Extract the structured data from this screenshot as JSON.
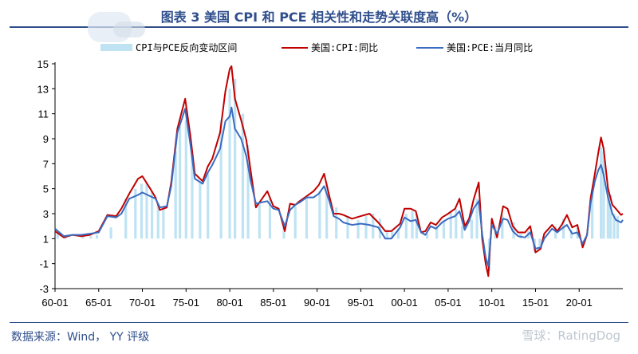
{
  "header": {
    "title": "图表 3 美国 CPI 和 PCE 相关性和走势关联度高（%）"
  },
  "footer": {
    "source": "数据来源：Wind， YY 评级",
    "watermark": "雪球：RatingDog"
  },
  "colors": {
    "band": "#bfe3f3",
    "cpi": "#c00000",
    "pce": "#3a6cc0",
    "axis": "#000000",
    "title": "#2f4e8c"
  },
  "chart_data": {
    "type": "line",
    "title": "图表 3 美国 CPI 和 PCE 相关性和走势关联度高（%）",
    "xlabel": "",
    "ylabel": "",
    "x_tick_labels": [
      "60-01",
      "65-01",
      "70-01",
      "75-01",
      "80-01",
      "85-01",
      "90-01",
      "95-01",
      "00-01",
      "05-01",
      "10-01",
      "15-01",
      "20-01"
    ],
    "x_domain": [
      1960.0,
      2025.0
    ],
    "y_tick_labels": [
      "-3",
      "-1",
      "1",
      "3",
      "5",
      "7",
      "9",
      "11",
      "13",
      "15"
    ],
    "ylim": [
      -3,
      15
    ],
    "grid": false,
    "legend_position": "top",
    "legend": [
      "CPI与PCE反向变动区间",
      "美国:CPI:同比",
      "美国:PCE:当月同比"
    ],
    "series": [
      {
        "name": "美国:CPI:同比",
        "x": [
          1960.0,
          1961.0,
          1962.0,
          1963.0,
          1964.0,
          1965.0,
          1966.0,
          1967.0,
          1967.6,
          1968.5,
          1969.5,
          1970.0,
          1970.9,
          1971.5,
          1972.0,
          1972.8,
          1973.3,
          1974.0,
          1974.9,
          1975.5,
          1976.0,
          1976.9,
          1977.5,
          1978.0,
          1978.9,
          1979.5,
          1980.0,
          1980.2,
          1980.6,
          1981.3,
          1981.9,
          1982.4,
          1983.0,
          1983.6,
          1984.3,
          1985.0,
          1985.6,
          1986.3,
          1986.9,
          1987.5,
          1988.0,
          1988.8,
          1989.6,
          1990.2,
          1990.8,
          1991.4,
          1991.9,
          1992.5,
          1993.0,
          1994.0,
          1995.0,
          1996.0,
          1997.0,
          1997.8,
          1998.5,
          1999.5,
          2000.0,
          2000.7,
          2001.3,
          2001.9,
          2002.4,
          2003.0,
          2003.6,
          2004.3,
          2005.0,
          2005.8,
          2006.3,
          2006.9,
          2007.4,
          2007.9,
          2008.5,
          2008.9,
          2009.3,
          2009.6,
          2010.0,
          2010.6,
          2011.3,
          2011.8,
          2012.4,
          2013.0,
          2013.8,
          2014.4,
          2015.0,
          2015.6,
          2016.0,
          2016.9,
          2017.5,
          2018.0,
          2018.6,
          2019.2,
          2019.8,
          2020.4,
          2020.9,
          2021.3,
          2021.8,
          2022.2,
          2022.5,
          2022.8,
          2023.3,
          2023.8,
          2024.2,
          2024.8,
          2025.0
        ],
        "values": [
          1.6,
          1.1,
          1.3,
          1.2,
          1.3,
          1.6,
          2.9,
          2.8,
          3.4,
          4.6,
          5.8,
          6.0,
          5.0,
          4.3,
          3.3,
          3.5,
          5.5,
          9.8,
          12.2,
          9.2,
          6.2,
          5.6,
          6.8,
          7.4,
          9.5,
          12.8,
          14.6,
          14.8,
          12.2,
          10.5,
          8.9,
          6.4,
          3.5,
          4.1,
          4.8,
          3.6,
          3.4,
          1.6,
          3.8,
          3.7,
          4.0,
          4.4,
          4.8,
          5.3,
          6.2,
          4.4,
          3.0,
          3.0,
          2.9,
          2.6,
          2.8,
          3.0,
          2.3,
          1.6,
          1.6,
          2.2,
          3.4,
          3.4,
          3.2,
          1.5,
          1.6,
          2.3,
          2.1,
          2.7,
          3.0,
          3.4,
          4.2,
          2.0,
          2.6,
          4.1,
          5.5,
          1.0,
          -1.0,
          -2.0,
          2.6,
          1.1,
          3.6,
          3.4,
          2.0,
          1.5,
          1.5,
          2.0,
          -0.1,
          0.2,
          1.4,
          2.1,
          1.6,
          2.1,
          2.9,
          1.9,
          2.1,
          0.3,
          1.3,
          4.2,
          6.2,
          7.9,
          9.1,
          8.2,
          5.0,
          3.7,
          3.4,
          2.9,
          3.0
        ]
      },
      {
        "name": "美国:PCE:当月同比",
        "x": [
          1960.0,
          1961.0,
          1962.0,
          1963.0,
          1964.0,
          1965.0,
          1966.0,
          1967.0,
          1967.6,
          1968.5,
          1969.5,
          1970.0,
          1970.9,
          1971.5,
          1972.0,
          1972.8,
          1973.3,
          1974.0,
          1974.9,
          1975.5,
          1976.0,
          1976.9,
          1977.5,
          1978.0,
          1978.9,
          1979.5,
          1980.0,
          1980.2,
          1980.6,
          1981.3,
          1981.9,
          1982.4,
          1983.0,
          1983.6,
          1984.3,
          1985.0,
          1985.6,
          1986.3,
          1986.9,
          1987.5,
          1988.0,
          1988.8,
          1989.6,
          1990.2,
          1990.8,
          1991.4,
          1991.9,
          1992.5,
          1993.0,
          1994.0,
          1995.0,
          1996.0,
          1997.0,
          1997.8,
          1998.5,
          1999.5,
          2000.0,
          2000.7,
          2001.3,
          2001.9,
          2002.4,
          2003.0,
          2003.6,
          2004.3,
          2005.0,
          2005.8,
          2006.3,
          2006.9,
          2007.4,
          2007.9,
          2008.5,
          2008.9,
          2009.3,
          2009.6,
          2010.0,
          2010.6,
          2011.3,
          2011.8,
          2012.4,
          2013.0,
          2013.8,
          2014.4,
          2015.0,
          2015.6,
          2016.0,
          2016.9,
          2017.5,
          2018.0,
          2018.6,
          2019.2,
          2019.8,
          2020.4,
          2020.9,
          2021.3,
          2021.8,
          2022.2,
          2022.5,
          2022.8,
          2023.3,
          2023.8,
          2024.2,
          2024.8,
          2025.0
        ],
        "values": [
          1.8,
          1.2,
          1.3,
          1.3,
          1.4,
          1.5,
          2.8,
          2.7,
          3.0,
          4.2,
          4.5,
          4.7,
          4.4,
          4.2,
          3.5,
          3.6,
          5.2,
          9.5,
          11.4,
          8.5,
          5.8,
          5.4,
          6.3,
          6.9,
          8.2,
          10.4,
          10.8,
          11.5,
          9.8,
          9.0,
          7.6,
          5.6,
          3.8,
          3.9,
          4.0,
          3.4,
          3.3,
          2.0,
          3.3,
          3.7,
          3.9,
          4.3,
          4.3,
          4.6,
          5.2,
          4.0,
          2.8,
          2.6,
          2.3,
          2.1,
          2.2,
          2.1,
          1.9,
          1.0,
          1.0,
          1.9,
          2.7,
          2.4,
          2.5,
          1.5,
          1.3,
          2.0,
          1.8,
          2.3,
          2.6,
          2.8,
          3.2,
          1.7,
          2.4,
          3.4,
          4.0,
          1.4,
          -0.5,
          -1.2,
          2.1,
          1.4,
          2.6,
          2.5,
          1.6,
          1.2,
          1.1,
          1.5,
          0.2,
          0.3,
          1.0,
          1.8,
          1.5,
          1.8,
          2.1,
          1.4,
          1.5,
          0.6,
          1.3,
          3.8,
          5.6,
          6.5,
          6.9,
          6.1,
          4.3,
          3.0,
          2.5,
          2.3,
          2.5
        ]
      }
    ],
    "reverse_band_xs": [
      1960.3,
      1961.2,
      1963.2,
      1964.1,
      1964.8,
      1966.4,
      1968.1,
      1969.2,
      1969.9,
      1970.5,
      1971.1,
      1971.8,
      1972.4,
      1973.8,
      1974.3,
      1975.0,
      1975.7,
      1976.6,
      1977.5,
      1979.0,
      1980.0,
      1980.6,
      1981.5,
      1982.1,
      1983.4,
      1984.6,
      1986.2,
      1987.5,
      1988.8,
      1990.3,
      1991.1,
      1992.2,
      1993.5,
      1994.7,
      1995.6,
      1996.4,
      1997.2,
      1998.0,
      1998.6,
      1999.3,
      2000.2,
      2000.9,
      2001.4,
      2002.6,
      2003.7,
      2004.5,
      2005.3,
      2005.9,
      2006.6,
      2007.7,
      2008.3,
      2009.7,
      2010.4,
      2011.2,
      2012.5,
      2013.3,
      2014.2,
      2014.9,
      2015.5,
      2016.6,
      2017.3,
      2018.2,
      2019.1,
      2019.8,
      2020.6,
      2021.5,
      2022.5,
      2022.8,
      2023.3,
      2023.6,
      2024.0,
      2024.4
    ],
    "reverse_band_values": [
      1.5,
      1.1,
      1.2,
      1.2,
      1.3,
      1.9,
      4.2,
      5.0,
      5.4,
      5.5,
      4.8,
      3.8,
      3.4,
      8.0,
      10.0,
      10.5,
      7.8,
      5.5,
      6.2,
      10.5,
      13.0,
      13.8,
      11.0,
      8.5,
      3.8,
      4.2,
      2.0,
      3.6,
      4.2,
      4.8,
      5.5,
      3.5,
      2.8,
      2.5,
      2.8,
      3.0,
      2.6,
      1.7,
      1.6,
      1.8,
      3.0,
      3.2,
      3.0,
      1.4,
      2.0,
      2.5,
      3.2,
      3.4,
      2.0,
      2.5,
      4.2,
      -1.6,
      2.0,
      2.9,
      2.3,
      1.4,
      1.6,
      -0.1,
      0.1,
      1.0,
      2.0,
      2.6,
      1.7,
      1.9,
      1.0,
      4.5,
      8.3,
      8.0,
      5.0,
      4.5,
      3.0,
      2.8
    ]
  }
}
